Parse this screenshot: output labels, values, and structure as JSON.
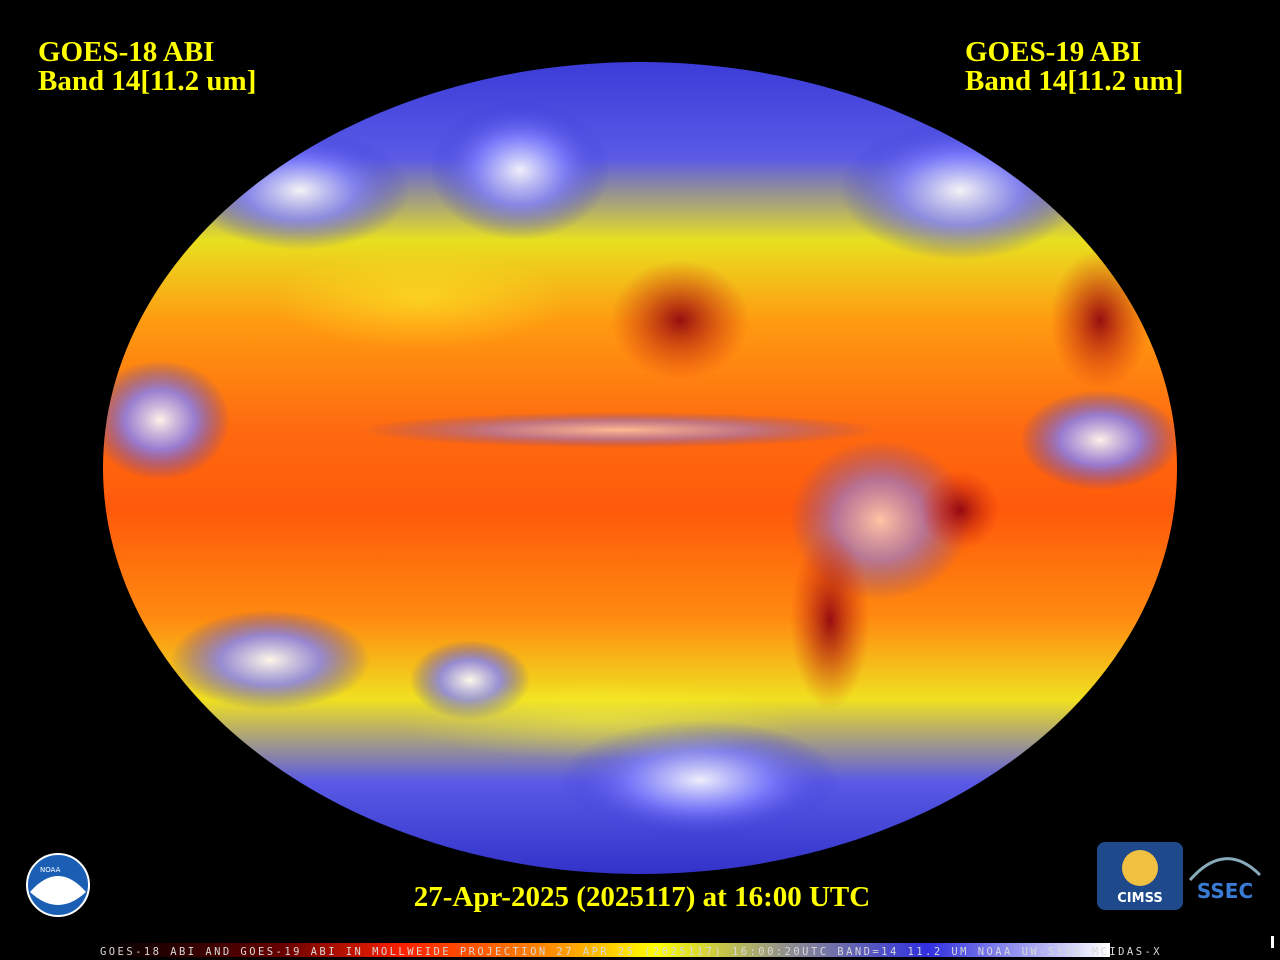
{
  "header": {
    "left": {
      "line1": "GOES-18 ABI",
      "line2": "Band 14[11.2 um]"
    },
    "right": {
      "line1": "GOES-19 ABI",
      "line2": "Band 14[11.2 um]"
    }
  },
  "timestamp": "27-Apr-2025 (2025117) at 16:00 UTC",
  "logos": {
    "noaa": "NOAA",
    "cimss": "CIMSS",
    "ssec": "SSEC"
  },
  "footer": "GOES-18 ABI AND GOES-19 ABI IN MOLLWEIDE PROJECTION 27 APR 25 (2025117) 16:00:20UTC BAND=14 11.2 UM NOAA UW-SSEC MCIDAS-X"
}
